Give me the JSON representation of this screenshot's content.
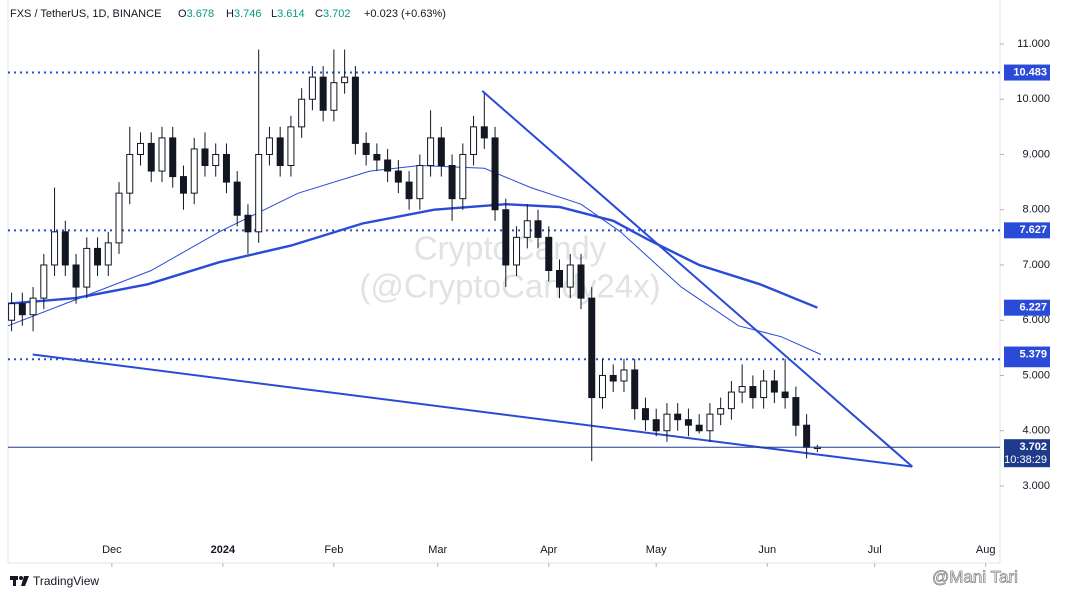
{
  "chart_data": {
    "type": "candlestick",
    "title": "FXS / TetherUS, 1D, BINANCE",
    "ohlc_prefixes": [
      "O",
      "H",
      "L",
      "C"
    ],
    "change": "+0.023 (+0.63%)",
    "x": [
      -28,
      -25,
      -22,
      -19,
      -16,
      -13,
      -10,
      -7,
      -4,
      -1,
      2,
      5,
      8,
      11,
      14,
      17,
      20,
      23,
      26,
      29,
      32,
      35,
      38,
      41,
      44,
      47,
      50,
      53,
      56,
      59,
      62,
      65,
      68,
      71,
      74,
      77,
      80,
      83,
      86,
      89,
      92,
      95,
      98,
      101,
      104,
      107,
      110,
      113,
      116,
      119,
      122,
      125,
      128,
      131,
      134,
      137,
      140,
      143,
      146,
      149,
      152,
      155,
      158,
      161,
      164,
      167,
      170,
      173,
      176,
      179,
      182,
      185,
      188,
      191,
      194,
      197
    ],
    "open": [
      6.0,
      6.3,
      6.1,
      6.4,
      7.0,
      7.6,
      7.0,
      6.6,
      7.3,
      7.0,
      7.4,
      8.3,
      9.0,
      9.2,
      8.7,
      9.3,
      8.6,
      8.3,
      9.1,
      8.8,
      9.0,
      8.5,
      7.9,
      7.6,
      9.0,
      9.3,
      8.8,
      9.5,
      10.0,
      10.4,
      9.8,
      10.3,
      10.4,
      9.2,
      9.0,
      8.9,
      8.7,
      8.5,
      8.2,
      8.8,
      9.3,
      8.8,
      8.2,
      9.0,
      9.5,
      9.3,
      8.0,
      7.0,
      7.5,
      7.8,
      7.5,
      6.9,
      6.6,
      7.0,
      6.4,
      4.6,
      5.0,
      4.9,
      5.1,
      4.4,
      4.2,
      4.0,
      4.3,
      4.2,
      4.1,
      4.0,
      4.3,
      4.4,
      4.7,
      4.8,
      4.6,
      4.9,
      4.7,
      4.6,
      4.1,
      3.678
    ],
    "high": [
      6.5,
      6.5,
      6.6,
      7.2,
      8.4,
      7.8,
      7.2,
      7.5,
      7.5,
      7.6,
      8.5,
      9.5,
      9.4,
      9.4,
      9.5,
      9.5,
      8.8,
      9.3,
      9.4,
      9.2,
      9.2,
      8.7,
      8.1,
      10.9,
      9.5,
      9.5,
      9.7,
      10.2,
      10.6,
      10.6,
      10.9,
      10.9,
      10.6,
      9.4,
      9.2,
      9.1,
      8.9,
      8.7,
      9.0,
      9.8,
      9.5,
      9.0,
      9.2,
      9.7,
      10.1,
      9.5,
      8.2,
      7.7,
      8.1,
      8.0,
      7.7,
      7.1,
      7.2,
      7.2,
      6.6,
      5.3,
      5.2,
      5.3,
      5.3,
      4.6,
      4.4,
      4.5,
      4.5,
      4.4,
      4.3,
      4.5,
      4.6,
      4.9,
      5.2,
      5.0,
      5.1,
      5.1,
      5.3,
      4.8,
      4.3,
      3.746
    ],
    "low": [
      5.8,
      5.9,
      5.8,
      6.2,
      6.8,
      6.8,
      6.3,
      6.4,
      6.8,
      6.8,
      7.2,
      8.1,
      8.8,
      8.5,
      8.5,
      8.4,
      8.0,
      8.1,
      8.6,
      8.6,
      8.3,
      7.7,
      7.2,
      7.4,
      8.8,
      8.6,
      8.6,
      9.3,
      9.8,
      9.6,
      9.6,
      10.1,
      9.0,
      8.8,
      8.7,
      8.5,
      8.3,
      8.0,
      8.0,
      8.6,
      8.6,
      7.8,
      8.0,
      8.8,
      9.1,
      7.8,
      6.6,
      6.8,
      7.3,
      7.3,
      6.7,
      6.4,
      6.4,
      6.2,
      3.45,
      4.4,
      4.7,
      4.7,
      4.2,
      4.0,
      3.9,
      3.8,
      4.0,
      3.9,
      3.95,
      3.8,
      4.1,
      4.2,
      4.5,
      4.4,
      4.4,
      4.5,
      4.4,
      3.9,
      3.5,
      3.614
    ],
    "close": [
      6.3,
      6.1,
      6.4,
      7.0,
      7.6,
      7.0,
      6.6,
      7.3,
      7.0,
      7.4,
      8.3,
      9.0,
      9.2,
      8.7,
      9.3,
      8.6,
      8.3,
      9.1,
      8.8,
      9.0,
      8.5,
      7.9,
      7.6,
      9.0,
      9.3,
      8.8,
      9.5,
      10.0,
      10.4,
      9.8,
      10.3,
      10.4,
      9.2,
      9.0,
      8.9,
      8.7,
      8.5,
      8.2,
      8.8,
      9.3,
      8.8,
      8.2,
      9.0,
      9.5,
      9.3,
      8.0,
      7.0,
      7.5,
      7.8,
      7.5,
      6.9,
      6.6,
      7.0,
      6.4,
      4.6,
      5.0,
      4.9,
      5.1,
      4.4,
      4.2,
      4.0,
      4.3,
      4.2,
      4.1,
      4.0,
      4.3,
      4.4,
      4.7,
      4.8,
      4.6,
      4.9,
      4.7,
      4.6,
      4.1,
      3.7,
      3.702
    ],
    "up_color": "#ffffff",
    "down_color": "#131722",
    "series": [
      {
        "color": "#2a4bd7",
        "width": 2.4,
        "x": [
          -29,
          -10,
          10,
          30,
          50,
          70,
          90,
          110,
          125,
          140,
          150,
          164,
          181,
          197
        ],
        "values": [
          6.3,
          6.4,
          6.65,
          7.05,
          7.35,
          7.75,
          8.0,
          8.1,
          8.05,
          7.8,
          7.45,
          7.0,
          6.65,
          6.227
        ]
      },
      {
        "color": "#2a4bd7",
        "width": 1,
        "x": [
          -29,
          -9,
          11,
          30,
          52,
          72,
          86,
          104,
          117,
          131,
          142,
          159,
          175,
          187,
          198
        ],
        "values": [
          5.9,
          6.4,
          6.9,
          7.6,
          8.3,
          8.7,
          8.8,
          8.75,
          8.4,
          8.1,
          7.6,
          6.6,
          5.9,
          5.7,
          5.379
        ]
      }
    ],
    "levels": [
      10.483,
      7.627,
      5.294
    ],
    "level_color": "#2a4bd7",
    "trendlines": [
      {
        "x": [
          103.4,
          223.5
        ],
        "values": [
          10.15,
          3.35
        ]
      },
      {
        "x": [
          -22.1,
          223.5
        ],
        "values": [
          5.38,
          3.35
        ]
      }
    ],
    "countdown": "10:38:29",
    "watermark": [
      "CryptoCandy",
      "(@CryptoCandy24x)"
    ],
    "xlim": [
      -29,
      248
    ],
    "ylim": [
      1.606,
      11.796
    ],
    "xticks": [
      {
        "value": 0,
        "label": "Dec"
      },
      {
        "value": 31,
        "label": "2024"
      },
      {
        "value": 62,
        "label": "Feb"
      },
      {
        "value": 91,
        "label": "Mar"
      },
      {
        "value": 122,
        "label": "Apr"
      },
      {
        "value": 152,
        "label": "May"
      },
      {
        "value": 183,
        "label": "Jun"
      },
      {
        "value": 213,
        "label": "Jul"
      },
      {
        "value": 244,
        "label": "Aug"
      }
    ],
    "yticks": [
      {
        "value": 3,
        "label": "3.000"
      },
      {
        "value": 4,
        "label": "4.000"
      },
      {
        "value": 5,
        "label": "5.000"
      },
      {
        "value": 6,
        "label": "6.000"
      },
      {
        "value": 7,
        "label": "7.000"
      },
      {
        "value": 8,
        "label": "8.000"
      },
      {
        "value": 9,
        "label": "9.000"
      },
      {
        "value": 10,
        "label": "10.000"
      },
      {
        "value": 11,
        "label": "11.000"
      }
    ]
  },
  "footer": {
    "brand": "TradingView",
    "credit": "@Mani Tari"
  }
}
